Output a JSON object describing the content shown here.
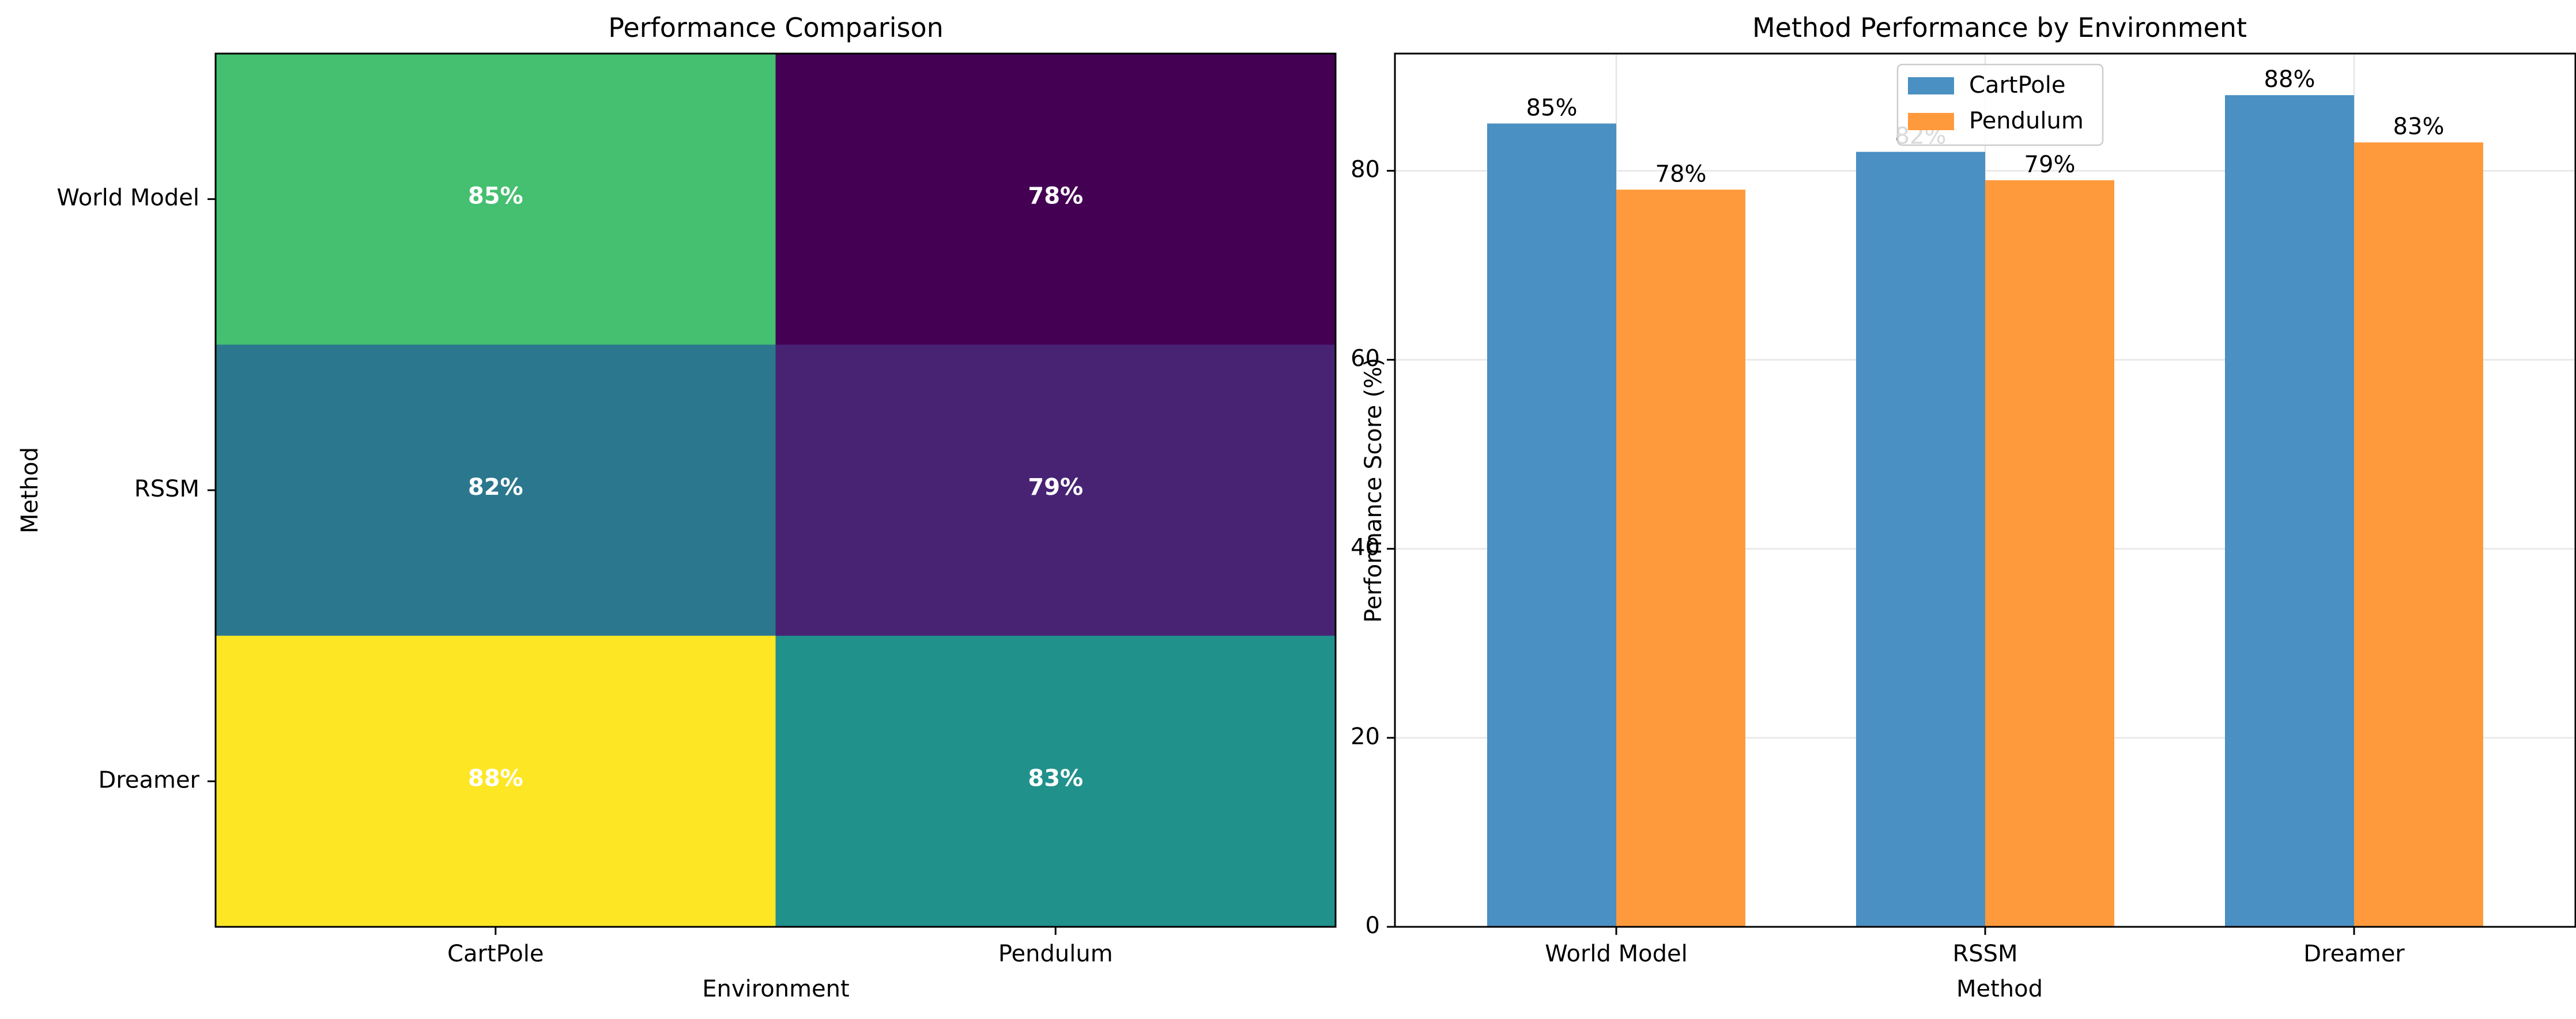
{
  "chart_data": [
    {
      "type": "heatmap",
      "title": "Performance Comparison",
      "xlabel": "Environment",
      "ylabel": "Method",
      "x_categories": [
        "CartPole",
        "Pendulum"
      ],
      "y_categories": [
        "World Model",
        "RSSM",
        "Dreamer"
      ],
      "values": [
        [
          85,
          78
        ],
        [
          82,
          79
        ],
        [
          88,
          83
        ]
      ],
      "cell_labels": [
        [
          "85%",
          "78%"
        ],
        [
          "82%",
          "79%"
        ],
        [
          "88%",
          "83%"
        ]
      ],
      "colormap": "viridis",
      "cell_colors": [
        [
          "#45bf70",
          "#440154"
        ],
        [
          "#2b778e",
          "#482374"
        ],
        [
          "#fde725",
          "#21918c"
        ]
      ]
    },
    {
      "type": "bar",
      "title": "Method Performance by Environment",
      "xlabel": "Method",
      "ylabel": "Performance Score (%)",
      "categories": [
        "World Model",
        "RSSM",
        "Dreamer"
      ],
      "series": [
        {
          "name": "CartPole",
          "values": [
            85,
            82,
            88
          ],
          "labels": [
            "85%",
            "82%",
            "88%"
          ],
          "color": "#4a90c2"
        },
        {
          "name": "Pendulum",
          "values": [
            78,
            79,
            83
          ],
          "labels": [
            "78%",
            "79%",
            "83%"
          ],
          "color": "#ff9a3c"
        }
      ],
      "ylim": [
        0,
        92.4
      ],
      "yticks": [
        0,
        20,
        40,
        60,
        80
      ],
      "grid": true,
      "legend": "top-center"
    }
  ]
}
